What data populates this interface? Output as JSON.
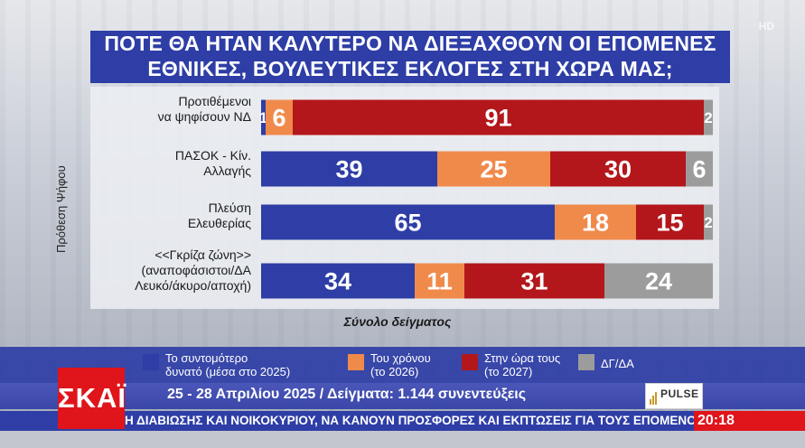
{
  "title_lines": [
    "ΠΟΤΕ ΘΑ ΗΤΑΝ ΚΑΛΥΤΕΡΟ ΝΑ ΔΙΕΞΑΧΘΟΥΝ ΟΙ ΕΠΟΜΕΝΕΣ",
    "ΕΘΝΙΚΕΣ, ΒΟΥΛΕΥΤΙΚΕΣ ΕΚΛΟΓΕΣ ΣΤΗ ΧΩΡΑ ΜΑΣ;"
  ],
  "hd_badge": "HD",
  "chart_data": {
    "type": "bar",
    "stacked": true,
    "orientation": "horizontal",
    "title": "ΠΟΤΕ ΘΑ ΗΤΑΝ ΚΑΛΥΤΕΡΟ ΝΑ ΔΙΕΞΑΧΘΟΥΝ ΟΙ ΕΠΟΜΕΝΕΣ ΕΘΝΙΚΕΣ, ΒΟΥΛΕΥΤΙΚΕΣ ΕΚΛΟΓΕΣ ΣΤΗ ΧΩΡΑ ΜΑΣ;",
    "ylabel": "Πρόθεση Ψήφου",
    "xlabel": "Σύνολο δείγματος",
    "categories": [
      [
        "Προτιθέμενοι",
        "να ψηφίσουν ΝΔ"
      ],
      [
        "ΠΑΣΟΚ - Κίν.",
        "Αλλαγής"
      ],
      [
        "Πλεύση",
        "Ελευθερίας"
      ],
      [
        "<<Γκρίζα ζώνη>>",
        "(αναποφάσιστοι/ΔΑ",
        "Λευκό/άκυρο/αποχή)"
      ]
    ],
    "series": [
      {
        "name": "Το συντομότερο δυνατό (μέσα στο 2025)",
        "color": "#2e3ea6",
        "values": [
          1,
          39,
          65,
          34
        ]
      },
      {
        "name": "Του χρόνου (το 2026)",
        "color": "#f08a4b",
        "values": [
          6,
          25,
          18,
          11
        ]
      },
      {
        "name": "Στην ώρα τους (το 2027)",
        "color": "#b3171b",
        "values": [
          91,
          30,
          15,
          31
        ]
      },
      {
        "name": "ΔΓ/ΔΑ",
        "color": "#9c9c9c",
        "values": [
          2,
          6,
          2,
          24
        ]
      }
    ],
    "xlim": [
      0,
      100
    ],
    "grid": false,
    "legend_position": "bottom"
  },
  "legend": [
    {
      "lines": [
        "Το συντομότερο",
        "δυνατό (μέσα στο 2025)"
      ],
      "color": "#2e3ea6"
    },
    {
      "lines": [
        "Του χρόνου",
        "(το 2026)"
      ],
      "color": "#f08a4b"
    },
    {
      "lines": [
        "Στην ώρα τους",
        "(το 2027)"
      ],
      "color": "#b3171b"
    },
    {
      "lines": [
        "ΔΓ/ΔΑ"
      ],
      "color": "#9c9c9c"
    }
  ],
  "info_text": "25 - 28 Απριλίου 2025 / Δείγματα: 1.144 συνεντεύξεις",
  "pulse_logo": "PULSE",
  "channel_logo": "ΣΚΑΪ",
  "ticker_text": "Η ΔΙΑΒΙΩΣΗΣ ΚΑΙ ΝΟΙΚΟΚΥΡΙΟΥ, ΝΑ ΚΑΝΟΥΝ ΠΡΟΣΦΟΡΕΣ ΚΑΙ ΕΚΠΤΩΣΕΙΣ ΓΙΑ ΤΟΥΣ ΕΠΟΜΕΝΟ",
  "clock": "20:18"
}
